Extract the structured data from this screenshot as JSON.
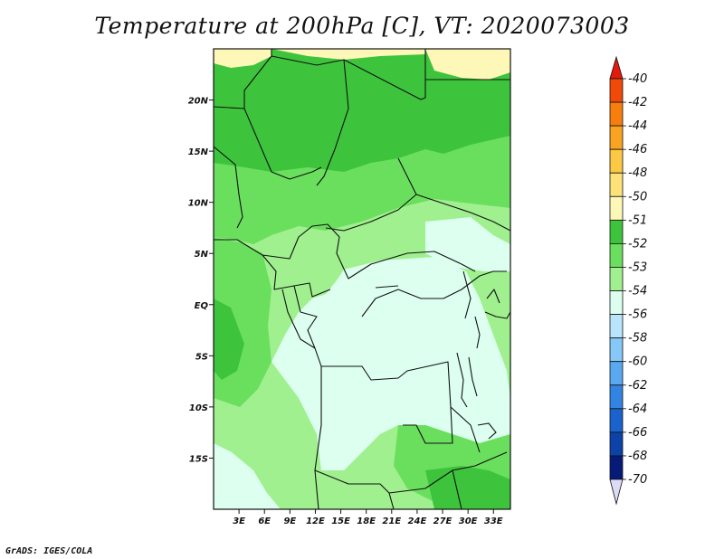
{
  "title": "Temperature at 200hPa [C], VT: 2020073003",
  "credit": "GrADS: IGES/COLA",
  "map": {
    "lon_range": [
      0,
      35
    ],
    "lat_range": [
      -20,
      25
    ],
    "lat_ticks": [
      {
        "value": 20,
        "label": "20N"
      },
      {
        "value": 15,
        "label": "15N"
      },
      {
        "value": 10,
        "label": "10N"
      },
      {
        "value": 5,
        "label": "5N"
      },
      {
        "value": 0,
        "label": "EQ"
      },
      {
        "value": -5,
        "label": "5S"
      },
      {
        "value": -10,
        "label": "10S"
      },
      {
        "value": -15,
        "label": "15S"
      }
    ],
    "lon_ticks": [
      {
        "value": 3,
        "label": "3E"
      },
      {
        "value": 6,
        "label": "6E"
      },
      {
        "value": 9,
        "label": "9E"
      },
      {
        "value": 12,
        "label": "12E"
      },
      {
        "value": 15,
        "label": "15E"
      },
      {
        "value": 18,
        "label": "18E"
      },
      {
        "value": 21,
        "label": "21E"
      },
      {
        "value": 24,
        "label": "24E"
      },
      {
        "value": 27,
        "label": "27E"
      },
      {
        "value": 30,
        "label": "30E"
      },
      {
        "value": 33,
        "label": "33E"
      }
    ]
  },
  "colorbar": {
    "labels": [
      "-40",
      "-42",
      "-44",
      "-46",
      "-48",
      "-50",
      "-51",
      "-52",
      "-53",
      "-54",
      "-56",
      "-58",
      "-60",
      "-62",
      "-64",
      "-66",
      "-68",
      "-70"
    ],
    "colors": [
      "#e31a0c",
      "#f04a0a",
      "#f77d0d",
      "#faa320",
      "#fcc945",
      "#fde27a",
      "#fef8b8",
      "#3ec43c",
      "#6adf5e",
      "#a0f08f",
      "#dcfff0",
      "#b8e4fc",
      "#86c8f8",
      "#5aa8f0",
      "#3284e2",
      "#1a62cc",
      "#0d42a8",
      "#061a78",
      "#dcdcf8"
    ]
  },
  "field_colors": {
    "c51": "#fef8b8",
    "c52": "#3ec43c",
    "c53": "#6adf5e",
    "c54": "#a0f08f",
    "c56": "#dcfff0"
  }
}
